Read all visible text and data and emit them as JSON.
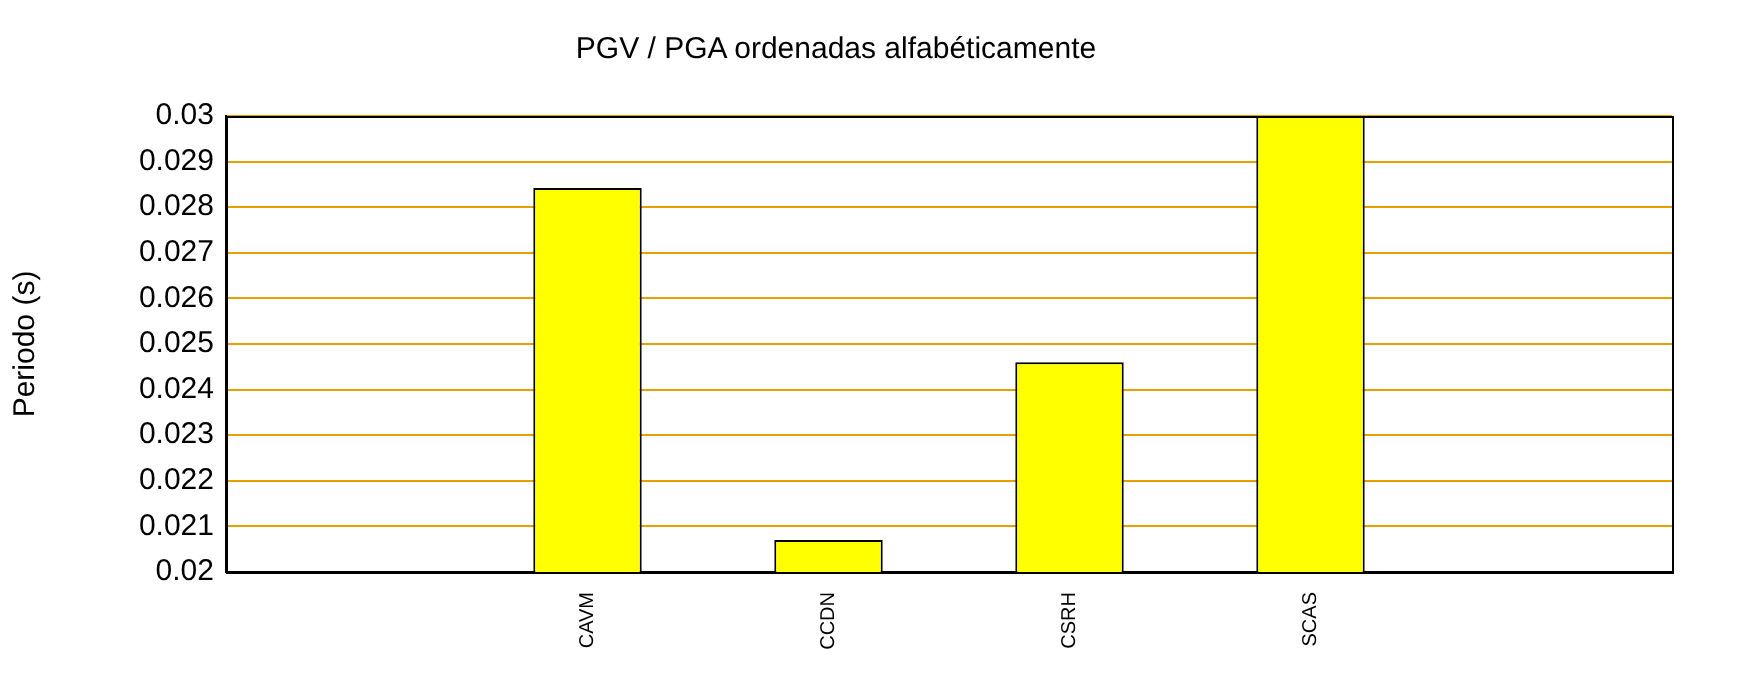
{
  "chart_data": {
    "type": "bar",
    "title": "PGV / PGA ordenadas alfabéticamente",
    "ylabel": "Periodo (s)",
    "categories": [
      null,
      "CAVM",
      "CCDN",
      "CSRH",
      "SCAS",
      null
    ],
    "values": [
      null,
      0.02842,
      0.0207,
      0.0246,
      0.03,
      null
    ],
    "color": "#ffff00",
    "ylim": [
      0.02,
      0.03
    ],
    "yticks": [
      0.02,
      0.021,
      0.022,
      0.023,
      0.024,
      0.025,
      0.026,
      0.027,
      0.028,
      0.029,
      0.03
    ],
    "grid": "y",
    "legend": false
  }
}
